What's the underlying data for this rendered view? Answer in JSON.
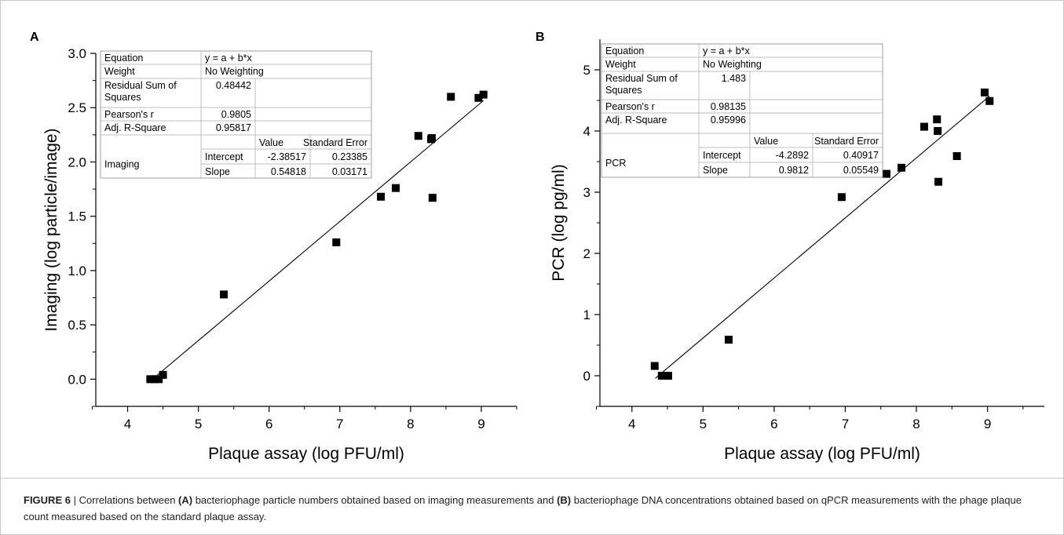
{
  "chart_data": [
    {
      "type": "scatter",
      "panel_label": "A",
      "xlabel": "Plaque assay (log PFU/ml)",
      "ylabel": "Imaging (log particle/image)",
      "xlim": [
        3.55,
        9.5
      ],
      "ylim": [
        -0.25,
        3.0
      ],
      "xticks": [
        "4",
        "5",
        "6",
        "7",
        "8",
        "9"
      ],
      "yticks": [
        "0.0",
        "0.5",
        "1.0",
        "1.5",
        "2.0",
        "2.5",
        "3.0"
      ],
      "x": [
        4.32,
        4.38,
        4.44,
        4.5,
        5.36,
        6.95,
        7.58,
        7.79,
        8.11,
        8.29,
        8.3,
        8.31,
        8.57,
        8.96,
        9.03
      ],
      "y": [
        0.0,
        0.0,
        0.0,
        0.04,
        0.78,
        1.26,
        1.68,
        1.76,
        2.24,
        2.21,
        2.22,
        1.67,
        2.6,
        2.59,
        2.62
      ],
      "fit": {
        "intercept": -2.38517,
        "slope": 0.54818,
        "x_from": 4.33,
        "x_to": 9.03
      },
      "stats_table": {
        "equation_label": "Equation",
        "equation_value": "y = a + b*x",
        "weight_label": "Weight",
        "weight_value": "No Weighting",
        "rss_label": "Residual Sum of Squares",
        "rss_label_l1": "Residual Sum of",
        "rss_label_l2": "Squares",
        "rss_value": "0.48442",
        "pearson_label": "Pearson's r",
        "pearson_value": "0.9805",
        "adjr_label": "Adj. R-Square",
        "adjr_value": "0.95817",
        "value_header": "Value",
        "se_header": "Standard Error",
        "group": "Imaging",
        "intercept_label": "Intercept",
        "intercept_value": "-2.38517",
        "intercept_se": "0.23385",
        "slope_label": "Slope",
        "slope_value": "0.54818",
        "slope_se": "0.03171"
      }
    },
    {
      "type": "scatter",
      "panel_label": "B",
      "xlabel": "Plaque assay (log PFU/ml)",
      "ylabel": "PCR (log pg/ml)",
      "xlim": [
        3.55,
        9.8
      ],
      "ylim": [
        -0.5,
        5.5
      ],
      "xticks": [
        "4",
        "5",
        "6",
        "7",
        "8",
        "9"
      ],
      "yticks": [
        "0",
        "1",
        "2",
        "3",
        "4",
        "5"
      ],
      "x": [
        4.32,
        4.42,
        4.48,
        4.51,
        5.36,
        6.95,
        7.58,
        7.79,
        8.11,
        8.29,
        8.3,
        8.31,
        8.57,
        8.96,
        9.03
      ],
      "y": [
        0.16,
        0.0,
        0.0,
        0.0,
        0.59,
        2.92,
        3.3,
        3.4,
        4.07,
        4.19,
        4.0,
        3.17,
        3.59,
        4.63,
        4.49
      ],
      "fit": {
        "intercept": -4.2892,
        "slope": 0.9812,
        "x_from": 4.33,
        "x_to": 9.03
      },
      "stats_table": {
        "equation_label": "Equation",
        "equation_value": "y = a + b*x",
        "weight_label": "Weight",
        "weight_value": "No Weighting",
        "rss_label": "Residual Sum of Squares",
        "rss_label_l1": "Residual Sum of",
        "rss_label_l2": "Squares",
        "rss_value": "1.483",
        "pearson_label": "Pearson's r",
        "pearson_value": "0.98135",
        "adjr_label": "Adj. R-Square",
        "adjr_value": "0.95996",
        "value_header": "Value",
        "se_header": "Standard Error",
        "group": "PCR",
        "intercept_label": "Intercept",
        "intercept_value": "-4.2892",
        "intercept_se": "0.40917",
        "slope_label": "Slope",
        "slope_value": "0.9812",
        "slope_se": "0.05549"
      }
    }
  ],
  "caption": {
    "figure_label": "FIGURE 6",
    "sep": " | ",
    "t1": "Correlations between ",
    "a": "(A)",
    "t2": " bacteriophage particle numbers obtained based on imaging measurements and ",
    "b": "(B)",
    "t3": " bacteriophage DNA concentrations obtained based on qPCR measurements with the phage plaque count measured based on the standard plaque assay."
  }
}
